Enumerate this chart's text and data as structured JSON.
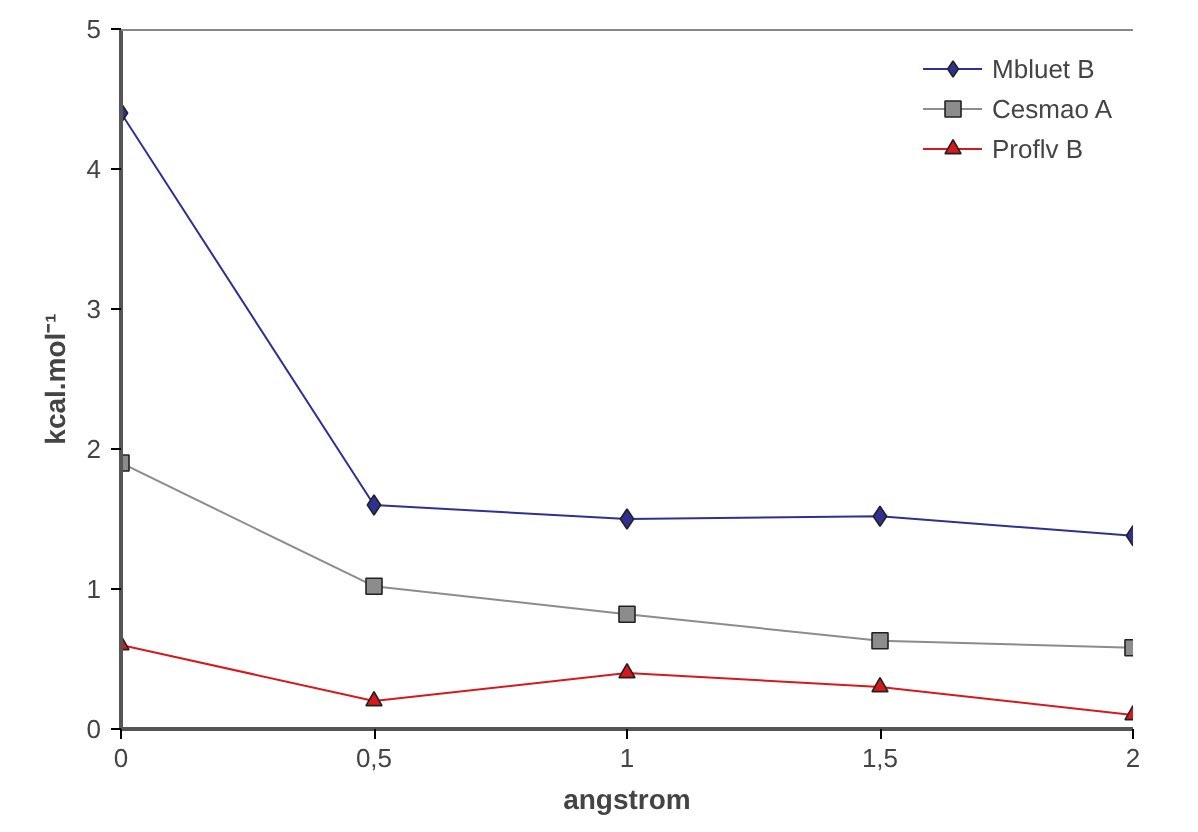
{
  "chart_data": {
    "type": "line",
    "xlabel": "angstrom",
    "ylabel": "kcal.mol⁻¹",
    "x": [
      0,
      0.5,
      1,
      1.5,
      2
    ],
    "series": [
      {
        "name": "Mbluet B",
        "color": "#2e3192",
        "marker": "diamond",
        "values": [
          4.4,
          1.6,
          1.5,
          1.52,
          1.38
        ]
      },
      {
        "name": "Cesmao A",
        "color": "#8c8c8c",
        "marker": "square",
        "values": [
          1.9,
          1.02,
          0.82,
          0.63,
          0.58
        ]
      },
      {
        "name": "Proflv B",
        "color": "#d7191c",
        "marker": "triangle",
        "values": [
          0.6,
          0.2,
          0.4,
          0.3,
          0.1
        ]
      }
    ],
    "xlim": [
      0,
      2
    ],
    "xticks": [
      {
        "value": 0,
        "label": "0"
      },
      {
        "value": 0.5,
        "label": "0,5"
      },
      {
        "value": 1,
        "label": "1"
      },
      {
        "value": 1.5,
        "label": "1,5"
      },
      {
        "value": 2,
        "label": "2"
      }
    ],
    "ylim": [
      0,
      5
    ],
    "yticks": [
      0,
      1,
      2,
      3,
      4,
      5
    ],
    "grid": false,
    "legend": "top right",
    "line_style": "solid"
  }
}
